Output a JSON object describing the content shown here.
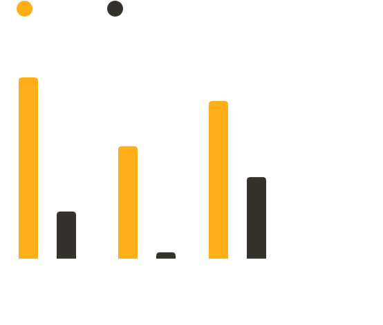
{
  "legend": {
    "items": [
      {
        "name": "",
        "color": "#FFAE17"
      },
      {
        "name": "",
        "color": "#35322E"
      }
    ]
  },
  "chart_data": {
    "type": "bar",
    "categories": [
      "",
      "",
      ""
    ],
    "series": [
      {
        "values": [
          100,
          62,
          87
        ],
        "color": "#FFAE17"
      },
      {
        "values": [
          26,
          3.5,
          45
        ],
        "color": "#35322E"
      }
    ],
    "ylim": [
      0,
      100
    ],
    "title": "",
    "xlabel": "",
    "ylabel": "",
    "grid": false,
    "legend_position": "top-left"
  }
}
